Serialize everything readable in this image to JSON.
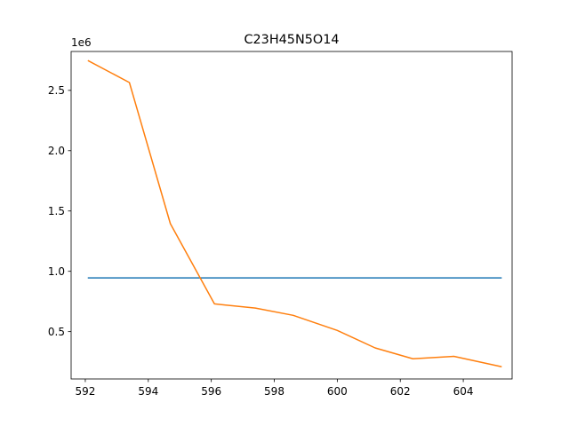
{
  "chart_data": {
    "type": "line",
    "title": "C23H45N5O14",
    "xlabel": "",
    "ylabel": "",
    "y_offset_label": "1e6",
    "xlim": [
      591.55,
      605.55
    ],
    "ylim": [
      0.1075,
      2.8225
    ],
    "x_ticks": [
      592,
      594,
      596,
      598,
      600,
      602,
      604
    ],
    "x_tick_labels": [
      "592",
      "594",
      "596",
      "598",
      "600",
      "602",
      "604"
    ],
    "y_ticks": [
      0.5,
      1.0,
      1.5,
      2.0,
      2.5
    ],
    "y_tick_labels": [
      "0.5",
      "1.0",
      "1.5",
      "2.0",
      "2.5"
    ],
    "grid": false,
    "legend": "none",
    "series": [
      {
        "color": "#1f77b4",
        "x": [
          592.1,
          605.2
        ],
        "y": [
          0.945,
          0.945
        ]
      },
      {
        "color": "#ff7f0e",
        "x": [
          592.1,
          593.4,
          594.7,
          596.1,
          597.4,
          598.6,
          600.0,
          601.2,
          602.4,
          603.7,
          605.2
        ],
        "y": [
          2.745,
          2.565,
          1.395,
          0.73,
          0.695,
          0.635,
          0.51,
          0.365,
          0.275,
          0.295,
          0.21
        ]
      }
    ]
  }
}
